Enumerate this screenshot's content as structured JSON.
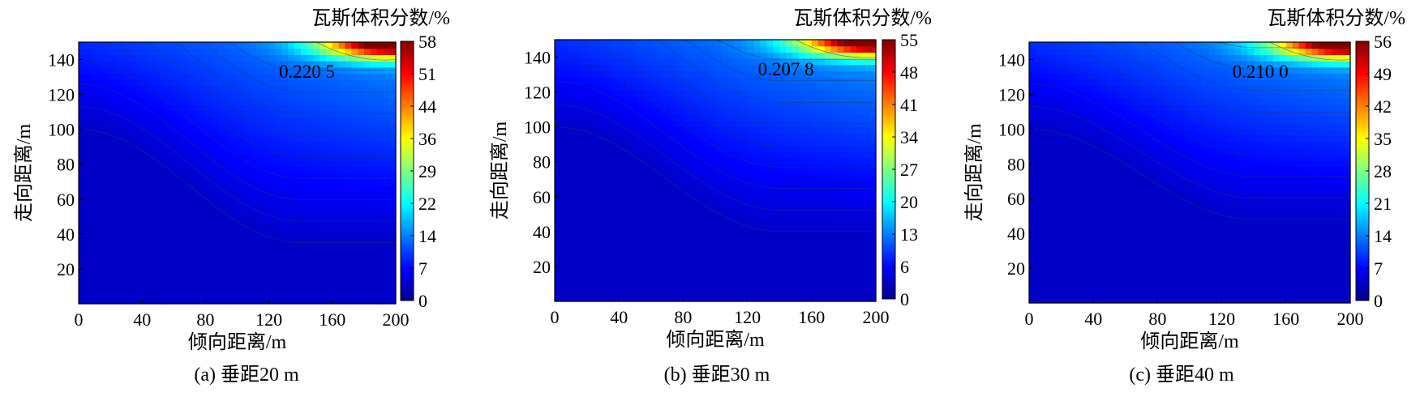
{
  "chart_data": [
    {
      "type": "heatmap",
      "subplot_label": "(a)",
      "caption": "垂距20 m",
      "xlabel": "倾向距离/m",
      "ylabel": "走向距离/m",
      "colorbar_label": "瓦斯体积分数/%",
      "x_ticks": [
        0,
        40,
        80,
        120,
        160,
        200
      ],
      "y_ticks": [
        20,
        40,
        60,
        80,
        100,
        120,
        140
      ],
      "xlim": [
        0,
        200
      ],
      "ylim": [
        0,
        150
      ],
      "colorbar_ticks": [
        0,
        7,
        14,
        22,
        29,
        36,
        44,
        51,
        58
      ],
      "clim": [
        0,
        58
      ],
      "contour_annotation": "0.220 5",
      "field": {
        "diag_start": 100,
        "diag_end": 35,
        "hot_value": 58
      }
    },
    {
      "type": "heatmap",
      "subplot_label": "(b)",
      "caption": "垂距30 m",
      "xlabel": "倾向距离/m",
      "ylabel": "走向距离/m",
      "colorbar_label": "瓦斯体积分数/%",
      "x_ticks": [
        0,
        40,
        80,
        120,
        160,
        200
      ],
      "y_ticks": [
        20,
        40,
        60,
        80,
        100,
        120,
        140
      ],
      "xlim": [
        0,
        200
      ],
      "ylim": [
        0,
        150
      ],
      "colorbar_ticks": [
        0,
        6,
        13,
        20,
        27,
        34,
        41,
        48,
        55
      ],
      "clim": [
        0,
        55
      ],
      "contour_annotation": "0.207 8",
      "field": {
        "diag_start": 100,
        "diag_end": 40,
        "hot_value": 55
      }
    },
    {
      "type": "heatmap",
      "subplot_label": "(c)",
      "caption": "垂距40 m",
      "xlabel": "倾向距离/m",
      "ylabel": "走向距离/m",
      "colorbar_label": "瓦斯体积分数/%",
      "x_ticks": [
        0,
        40,
        80,
        120,
        160,
        200
      ],
      "y_ticks": [
        20,
        40,
        60,
        80,
        100,
        120,
        140
      ],
      "xlim": [
        0,
        200
      ],
      "ylim": [
        0,
        150
      ],
      "colorbar_ticks": [
        0,
        7,
        14,
        21,
        28,
        35,
        42,
        49,
        56
      ],
      "clim": [
        0,
        56
      ],
      "contour_annotation": "0.210 0",
      "field": {
        "diag_start": 100,
        "diag_end": 48,
        "hot_value": 56
      }
    }
  ]
}
